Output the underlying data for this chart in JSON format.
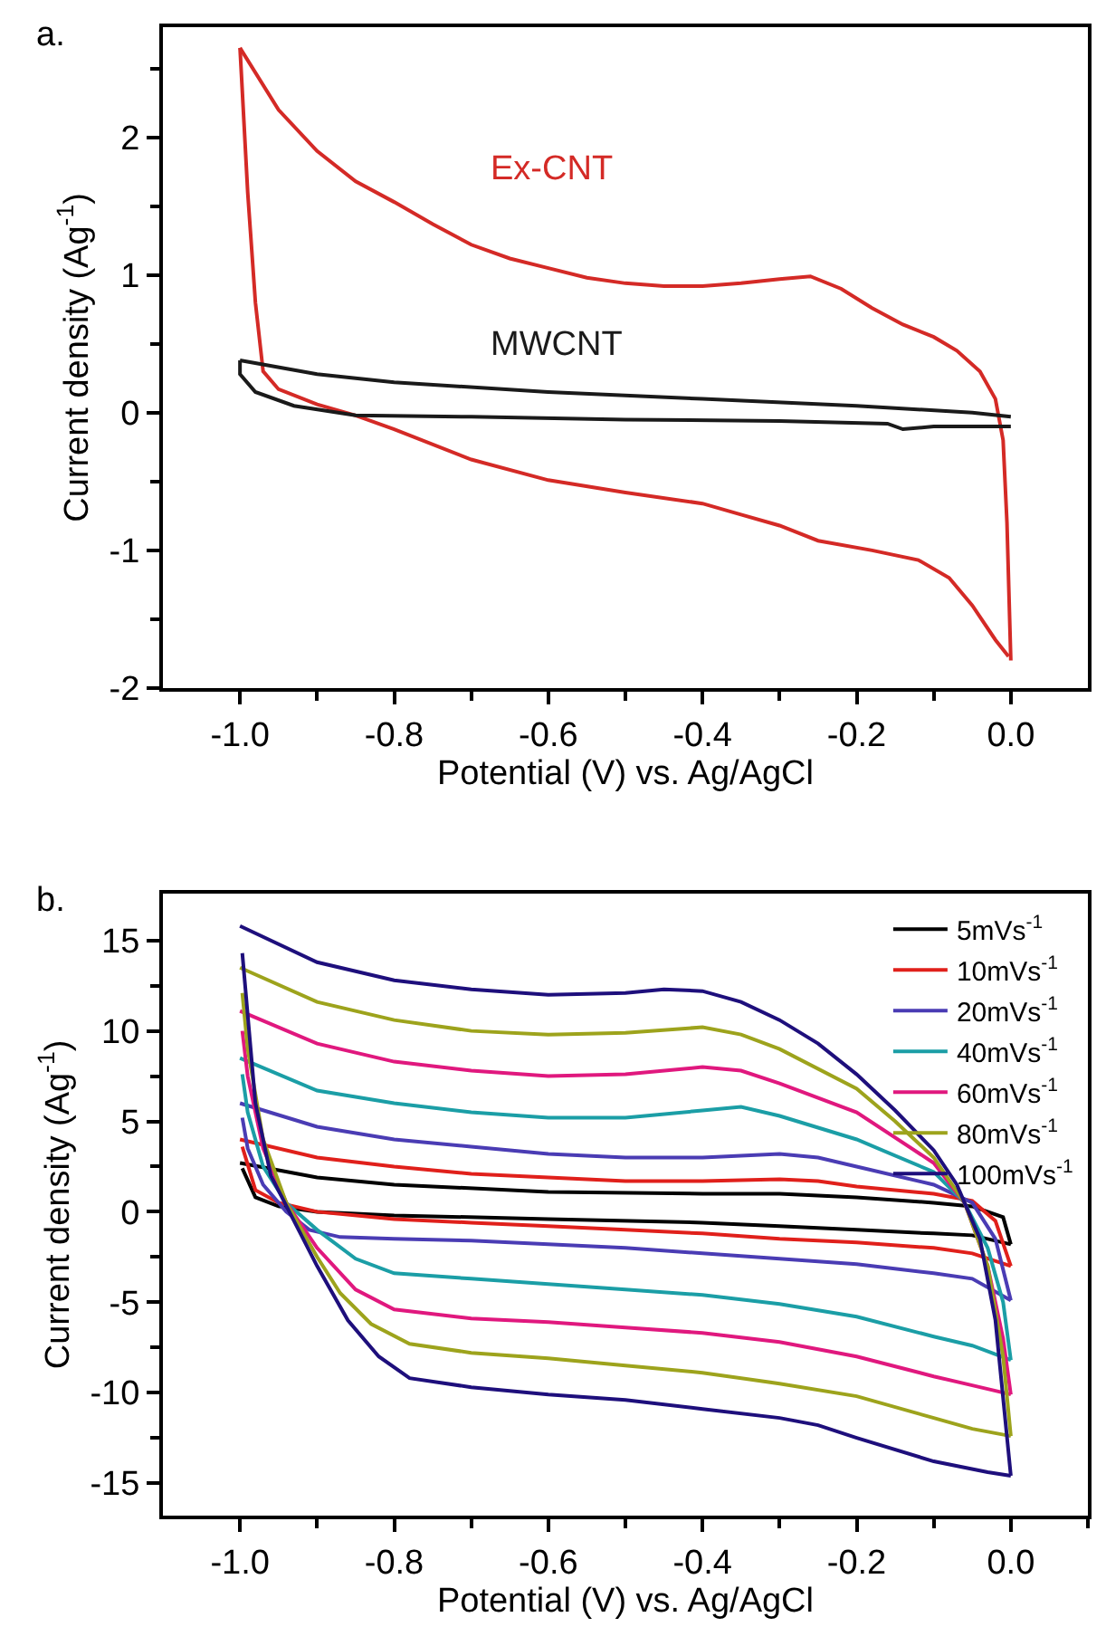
{
  "chart_data": [
    {
      "type": "line",
      "xlabel": "Potential (V) vs. Ag/AgCl",
      "ylabel": "Current density (Ag$^{-1}$)",
      "annotations": [
        "a."
      ],
      "legend": false,
      "line_style": "solid",
      "marker": "none",
      "xlim": [
        -1.1,
        0.1
      ],
      "ylim": [
        -2,
        2.8
      ],
      "xticks": [
        {
          "value": -1.0,
          "label": "-1.0"
        },
        {
          "value": -0.9,
          "label": null
        },
        {
          "value": -0.8,
          "label": "-0.8"
        },
        {
          "value": -0.7,
          "label": null
        },
        {
          "value": -0.6,
          "label": "-0.6"
        },
        {
          "value": -0.5,
          "label": null
        },
        {
          "value": -0.4,
          "label": "-0.4"
        },
        {
          "value": -0.3,
          "label": null
        },
        {
          "value": -0.2,
          "label": "-0.2"
        },
        {
          "value": -0.1,
          "label": null
        },
        {
          "value": 0.0,
          "label": "0.0"
        }
      ],
      "yticks": [
        -2,
        {
          "value": -1.5,
          "label": null
        },
        -1,
        {
          "value": -0.5,
          "label": null
        },
        0,
        {
          "value": 0.5,
          "label": null
        },
        1,
        {
          "value": 1.5,
          "label": null
        },
        2,
        {
          "value": 2.5,
          "label": null
        }
      ],
      "series": [
        {
          "name": "Ex-CNT",
          "color": "#d42a26",
          "x": [
            -1.0,
            -0.95,
            -0.9,
            -0.85,
            -0.8,
            -0.75,
            -0.7,
            -0.65,
            -0.6,
            -0.55,
            -0.5,
            -0.45,
            -0.4,
            -0.35,
            -0.3,
            -0.26,
            -0.22,
            -0.18,
            -0.14,
            -0.1,
            -0.07,
            -0.04,
            -0.02,
            -0.01,
            -0.005,
            0.0
          ],
          "values": [
            2.65,
            2.2,
            1.9,
            1.68,
            1.53,
            1.37,
            1.22,
            1.12,
            1.05,
            0.98,
            0.94,
            0.92,
            0.92,
            0.94,
            0.97,
            0.99,
            0.9,
            0.76,
            0.64,
            0.55,
            0.45,
            0.3,
            0.1,
            -0.2,
            -0.8,
            -1.8
          ]
        },
        {
          "color": "#d42a26",
          "x": [
            -0.003,
            -0.02,
            -0.05,
            -0.08,
            -0.12,
            -0.18,
            -0.25,
            -0.3,
            -0.35,
            -0.4,
            -0.5,
            -0.6,
            -0.7,
            -0.8,
            -0.85,
            -0.9,
            -0.95,
            -0.97,
            -0.98,
            -0.99,
            -1.0
          ],
          "values": [
            -1.77,
            -1.65,
            -1.4,
            -1.2,
            -1.07,
            -1.0,
            -0.93,
            -0.82,
            -0.74,
            -0.66,
            -0.58,
            -0.49,
            -0.34,
            -0.12,
            -0.02,
            0.06,
            0.17,
            0.3,
            0.8,
            1.6,
            2.65
          ]
        },
        {
          "name": "MWCNT",
          "color": "#1a1a1a",
          "x": [
            -1.0,
            -0.9,
            -0.8,
            -0.6,
            -0.4,
            -0.2,
            -0.05,
            0.0
          ],
          "values": [
            0.38,
            0.28,
            0.22,
            0.15,
            0.1,
            0.05,
            0.0,
            -0.03
          ]
        },
        {
          "color": "#1a1a1a",
          "x": [
            0.0,
            -0.1,
            -0.14,
            -0.16,
            -0.3,
            -0.5,
            -0.7,
            -0.85,
            -0.93,
            -0.98,
            -1.0,
            -1.0
          ],
          "values": [
            -0.1,
            -0.1,
            -0.12,
            -0.08,
            -0.06,
            -0.05,
            -0.03,
            -0.02,
            0.05,
            0.15,
            0.28,
            0.38
          ]
        }
      ]
    },
    {
      "type": "line",
      "xlabel": "Potential (V) vs. Ag/AgCl",
      "ylabel": "Current density (Ag$^{-1}$)",
      "annotations": [
        "b."
      ],
      "legend": "top right",
      "line_style": "solid",
      "marker": "none",
      "xlim": [
        -1.1,
        0.1
      ],
      "ylim": [
        -16.8,
        17.6
      ],
      "xticks": [
        {
          "value": -1.0,
          "label": "-1.0"
        },
        {
          "value": -0.9,
          "label": null
        },
        {
          "value": -0.8,
          "label": "-0.8"
        },
        {
          "value": -0.7,
          "label": null
        },
        {
          "value": -0.6,
          "label": "-0.6"
        },
        {
          "value": -0.5,
          "label": null
        },
        {
          "value": -0.4,
          "label": "-0.4"
        },
        {
          "value": -0.3,
          "label": null
        },
        {
          "value": -0.2,
          "label": "-0.2"
        },
        {
          "value": -0.1,
          "label": null
        },
        {
          "value": 0.0,
          "label": "0.0"
        },
        {
          "value": 0.1,
          "label": null
        }
      ],
      "yticks": [
        -15,
        {
          "value": -12.5,
          "label": null
        },
        -10,
        {
          "value": -7.5,
          "label": null
        },
        -5,
        {
          "value": -2.5,
          "label": null
        },
        0,
        {
          "value": 2.5,
          "label": null
        },
        5,
        {
          "value": 7.5,
          "label": null
        },
        10,
        {
          "value": 12.5,
          "label": null
        },
        15
      ],
      "series": [
        {
          "name": "5mVs$^{-1}$",
          "color": "#000000",
          "x": [
            -1.0,
            -0.9,
            -0.8,
            -0.6,
            -0.4,
            -0.3,
            -0.2,
            -0.1,
            -0.05,
            -0.01,
            0.0
          ],
          "values": [
            2.7,
            1.9,
            1.5,
            1.1,
            1.0,
            1.0,
            0.8,
            0.5,
            0.3,
            -0.3,
            -1.8
          ]
        },
        {
          "color": "#000000",
          "x": [
            0.0,
            -0.05,
            -0.1,
            -0.2,
            -0.3,
            -0.4,
            -0.6,
            -0.8,
            -0.9,
            -0.95,
            -0.98,
            -0.997
          ],
          "values": [
            -1.8,
            -1.3,
            -1.2,
            -1.0,
            -0.8,
            -0.6,
            -0.4,
            -0.2,
            0.0,
            0.3,
            0.8,
            2.4
          ]
        },
        {
          "name": "10mVs$^{-1}$",
          "color": "#e0201b",
          "x": [
            -1.0,
            -0.9,
            -0.8,
            -0.7,
            -0.6,
            -0.5,
            -0.4,
            -0.3,
            -0.25,
            -0.2,
            -0.1,
            -0.05,
            -0.02,
            0.0
          ],
          "values": [
            4.0,
            3.0,
            2.5,
            2.1,
            1.9,
            1.7,
            1.7,
            1.8,
            1.7,
            1.4,
            1.0,
            0.6,
            -0.5,
            -3.0
          ]
        },
        {
          "color": "#e0201b",
          "x": [
            0.0,
            -0.05,
            -0.1,
            -0.2,
            -0.3,
            -0.4,
            -0.5,
            -0.6,
            -0.7,
            -0.8,
            -0.9,
            -0.95,
            -0.98,
            -0.997
          ],
          "values": [
            -3.0,
            -2.3,
            -2.0,
            -1.7,
            -1.5,
            -1.2,
            -1.0,
            -0.8,
            -0.6,
            -0.4,
            0.0,
            0.5,
            1.2,
            3.6
          ]
        },
        {
          "name": "20mVs$^{-1}$",
          "color": "#4a3cb4",
          "x": [
            -1.0,
            -0.9,
            -0.8,
            -0.7,
            -0.6,
            -0.5,
            -0.4,
            -0.3,
            -0.25,
            -0.2,
            -0.1,
            -0.05,
            -0.02,
            0.0
          ],
          "values": [
            6.0,
            4.7,
            4.0,
            3.6,
            3.2,
            3.0,
            3.0,
            3.2,
            3.0,
            2.5,
            1.5,
            0.5,
            -1.5,
            -4.9
          ]
        },
        {
          "color": "#4a3cb4",
          "x": [
            0.0,
            -0.05,
            -0.1,
            -0.2,
            -0.3,
            -0.4,
            -0.5,
            -0.6,
            -0.7,
            -0.8,
            -0.87,
            -0.91,
            -0.94,
            -0.97,
            -0.99,
            -0.997
          ],
          "values": [
            -4.9,
            -3.7,
            -3.4,
            -2.9,
            -2.6,
            -2.3,
            -2.0,
            -1.8,
            -1.6,
            -1.5,
            -1.4,
            -1.0,
            0.0,
            1.5,
            3.5,
            5.2
          ]
        },
        {
          "name": "40mVs$^{-1}$",
          "color": "#1b9ea6",
          "x": [
            -1.0,
            -0.9,
            -0.8,
            -0.7,
            -0.6,
            -0.5,
            -0.4,
            -0.35,
            -0.3,
            -0.2,
            -0.1,
            -0.06,
            -0.03,
            -0.01,
            0.0
          ],
          "values": [
            8.5,
            6.7,
            6.0,
            5.5,
            5.2,
            5.2,
            5.6,
            5.8,
            5.3,
            4.0,
            2.2,
            0.5,
            -2.0,
            -5.0,
            -8.2
          ]
        },
        {
          "color": "#1b9ea6",
          "x": [
            0.0,
            -0.05,
            -0.1,
            -0.2,
            -0.3,
            -0.4,
            -0.5,
            -0.6,
            -0.7,
            -0.8,
            -0.85,
            -0.9,
            -0.94,
            -0.97,
            -0.99,
            -0.997
          ],
          "values": [
            -8.2,
            -7.4,
            -6.9,
            -5.8,
            -5.1,
            -4.6,
            -4.3,
            -4.0,
            -3.7,
            -3.4,
            -2.6,
            -1.0,
            0.5,
            2.5,
            5.5,
            7.6
          ]
        },
        {
          "name": "60mVs$^{-1}$",
          "color": "#e0187e",
          "x": [
            -1.0,
            -0.9,
            -0.8,
            -0.7,
            -0.6,
            -0.5,
            -0.4,
            -0.35,
            -0.3,
            -0.2,
            -0.1,
            -0.06,
            -0.03,
            -0.01,
            0.0
          ],
          "values": [
            11.1,
            9.3,
            8.3,
            7.8,
            7.5,
            7.6,
            8.0,
            7.8,
            7.1,
            5.5,
            2.7,
            0.5,
            -3.0,
            -7.0,
            -10.1
          ]
        },
        {
          "color": "#e0187e",
          "x": [
            0.0,
            -0.05,
            -0.1,
            -0.2,
            -0.3,
            -0.4,
            -0.5,
            -0.6,
            -0.7,
            -0.8,
            -0.85,
            -0.9,
            -0.94,
            -0.97,
            -0.99,
            -0.997
          ],
          "values": [
            -10.1,
            -9.6,
            -9.1,
            -8.0,
            -7.2,
            -6.7,
            -6.4,
            -6.1,
            -5.9,
            -5.4,
            -4.3,
            -2.0,
            0.5,
            3.5,
            7.5,
            10.0
          ]
        },
        {
          "name": "80mVs$^{-1}$",
          "color": "#9da31c",
          "x": [
            -1.0,
            -0.9,
            -0.8,
            -0.7,
            -0.6,
            -0.5,
            -0.4,
            -0.35,
            -0.3,
            -0.2,
            -0.15,
            -0.1,
            -0.06,
            -0.03,
            -0.01,
            0.0
          ],
          "values": [
            13.5,
            11.6,
            10.6,
            10.0,
            9.8,
            9.9,
            10.2,
            9.8,
            9.0,
            6.8,
            5.0,
            3.0,
            0.5,
            -3.0,
            -8.0,
            -12.4
          ]
        },
        {
          "color": "#9da31c",
          "x": [
            0.0,
            -0.05,
            -0.1,
            -0.2,
            -0.3,
            -0.4,
            -0.5,
            -0.6,
            -0.7,
            -0.78,
            -0.83,
            -0.87,
            -0.9,
            -0.94,
            -0.97,
            -0.99,
            -0.997
          ],
          "values": [
            -12.4,
            -12.0,
            -11.4,
            -10.2,
            -9.5,
            -8.9,
            -8.5,
            -8.1,
            -7.8,
            -7.3,
            -6.2,
            -4.5,
            -2.5,
            0.5,
            4.0,
            9.0,
            12.1
          ]
        },
        {
          "name": "100mVs$^{-1}$",
          "color": "#1e0f7c",
          "x": [
            -1.0,
            -0.9,
            -0.8,
            -0.7,
            -0.6,
            -0.5,
            -0.45,
            -0.4,
            -0.35,
            -0.3,
            -0.25,
            -0.2,
            -0.15,
            -0.1,
            -0.07,
            -0.04,
            -0.02,
            0.0
          ],
          "values": [
            15.8,
            13.8,
            12.8,
            12.3,
            12.0,
            12.1,
            12.3,
            12.2,
            11.6,
            10.6,
            9.3,
            7.6,
            5.6,
            3.4,
            1.5,
            -1.5,
            -6.0,
            -14.6
          ]
        },
        {
          "color": "#1e0f7c",
          "x": [
            0.0,
            -0.03,
            -0.1,
            -0.2,
            -0.25,
            -0.3,
            -0.4,
            -0.5,
            -0.6,
            -0.7,
            -0.78,
            -0.82,
            -0.86,
            -0.9,
            -0.93,
            -0.96,
            -0.98,
            -0.997
          ],
          "values": [
            -14.6,
            -14.4,
            -13.8,
            -12.5,
            -11.8,
            -11.4,
            -10.9,
            -10.4,
            -10.1,
            -9.7,
            -9.2,
            -8.0,
            -6.0,
            -3.0,
            -0.5,
            2.0,
            6.0,
            14.3
          ]
        }
      ]
    }
  ]
}
